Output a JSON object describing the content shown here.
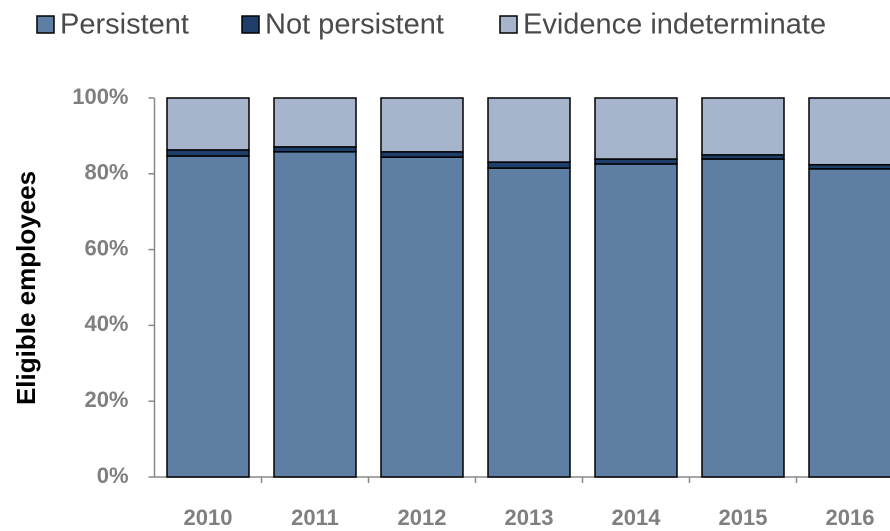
{
  "chart_data": {
    "type": "stacked_bar",
    "y_axis_label": "Eligible employees",
    "categories": [
      "2010",
      "2011",
      "2012",
      "2013",
      "2014",
      "2015",
      "2016"
    ],
    "series": [
      {
        "name": "Persistent",
        "color": "#5f7ea3",
        "values": [
          84.7,
          85.8,
          84.4,
          81.5,
          82.6,
          83.9,
          81.3
        ]
      },
      {
        "name": "Not persistent",
        "color": "#1f3f6b",
        "values": [
          1.6,
          1.3,
          1.4,
          1.6,
          1.3,
          1.1,
          1.1
        ]
      },
      {
        "name": "Evidence indeterminate",
        "color": "#a6b4cc",
        "values": [
          13.7,
          12.9,
          14.2,
          16.9,
          16.1,
          15.0,
          17.6
        ]
      }
    ],
    "ylim": [
      0,
      100
    ],
    "yticks": [
      {
        "value": 0,
        "label": "0%"
      },
      {
        "value": 20,
        "label": "20%"
      },
      {
        "value": 40,
        "label": "40%"
      },
      {
        "value": 60,
        "label": "60%"
      },
      {
        "value": 80,
        "label": "80%"
      },
      {
        "value": 100,
        "label": "100%"
      }
    ],
    "legend": "top"
  }
}
